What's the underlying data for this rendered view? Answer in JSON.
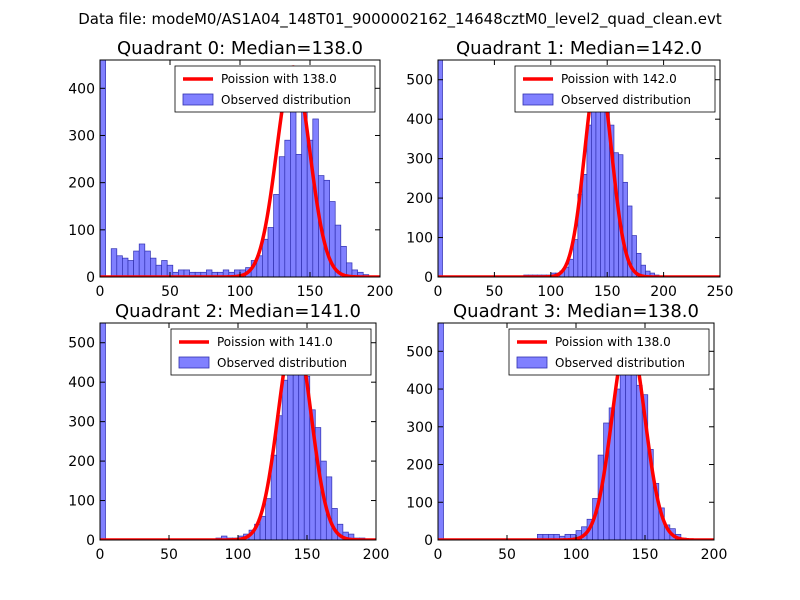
{
  "figure": {
    "suptitle": "Data file: modeM0/AS1A04_148T01_9000002162_14648cztM0_level2_quad_clean.evt",
    "colors": {
      "hist_fill": "#8080ff",
      "hist_edge": "#3030b0",
      "poisson": "#ff0000",
      "background": "#ffffff"
    }
  },
  "chart_data": [
    {
      "type": "bar",
      "title": "Quadrant 0: Median=138.0",
      "xlim": [
        0,
        200
      ],
      "ylim": [
        0,
        460
      ],
      "xticks": [
        0,
        50,
        100,
        150,
        200
      ],
      "yticks": [
        0,
        100,
        200,
        300,
        400
      ],
      "bin_width": 4,
      "bins": [
        [
          0,
          460
        ],
        [
          8,
          60
        ],
        [
          12,
          45
        ],
        [
          16,
          40
        ],
        [
          20,
          35
        ],
        [
          24,
          55
        ],
        [
          28,
          70
        ],
        [
          32,
          55
        ],
        [
          36,
          40
        ],
        [
          40,
          25
        ],
        [
          44,
          35
        ],
        [
          48,
          25
        ],
        [
          52,
          10
        ],
        [
          56,
          15
        ],
        [
          60,
          15
        ],
        [
          64,
          10
        ],
        [
          68,
          10
        ],
        [
          72,
          10
        ],
        [
          76,
          15
        ],
        [
          80,
          10
        ],
        [
          84,
          10
        ],
        [
          88,
          15
        ],
        [
          92,
          10
        ],
        [
          96,
          15
        ],
        [
          100,
          15
        ],
        [
          104,
          20
        ],
        [
          108,
          35
        ],
        [
          112,
          45
        ],
        [
          116,
          80
        ],
        [
          120,
          105
        ],
        [
          124,
          175
        ],
        [
          128,
          255
        ],
        [
          132,
          290
        ],
        [
          136,
          445
        ],
        [
          140,
          260
        ],
        [
          144,
          380
        ],
        [
          148,
          290
        ],
        [
          152,
          335
        ],
        [
          156,
          215
        ],
        [
          160,
          205
        ],
        [
          164,
          160
        ],
        [
          168,
          110
        ],
        [
          172,
          65
        ],
        [
          176,
          30
        ],
        [
          180,
          15
        ],
        [
          184,
          10
        ],
        [
          188,
          5
        ]
      ],
      "poisson": {
        "label": "Poission with 138.0",
        "mean": 138.0,
        "peak": 445
      },
      "legend": {
        "hist_label": "Observed distribution",
        "location": "upper right"
      }
    },
    {
      "type": "bar",
      "title": "Quadrant 1: Median=142.0",
      "xlim": [
        0,
        250
      ],
      "ylim": [
        0,
        550
      ],
      "xticks": [
        0,
        50,
        100,
        150,
        200,
        250
      ],
      "yticks": [
        0,
        100,
        200,
        300,
        400,
        500
      ],
      "bin_width": 4,
      "bins": [
        [
          0,
          550
        ],
        [
          76,
          5
        ],
        [
          80,
          5
        ],
        [
          84,
          5
        ],
        [
          88,
          5
        ],
        [
          92,
          5
        ],
        [
          96,
          5
        ],
        [
          100,
          10
        ],
        [
          104,
          10
        ],
        [
          108,
          15
        ],
        [
          112,
          25
        ],
        [
          116,
          45
        ],
        [
          120,
          95
        ],
        [
          124,
          210
        ],
        [
          128,
          260
        ],
        [
          132,
          385
        ],
        [
          136,
          420
        ],
        [
          140,
          505
        ],
        [
          144,
          450
        ],
        [
          148,
          420
        ],
        [
          152,
          385
        ],
        [
          156,
          315
        ],
        [
          160,
          310
        ],
        [
          164,
          240
        ],
        [
          168,
          180
        ],
        [
          172,
          105
        ],
        [
          176,
          60
        ],
        [
          180,
          30
        ],
        [
          184,
          15
        ],
        [
          188,
          10
        ],
        [
          192,
          5
        ]
      ],
      "poisson": {
        "label": "Poission with 142.0",
        "mean": 142.0,
        "peak": 525
      },
      "legend": {
        "hist_label": "Observed distribution",
        "location": "upper right"
      }
    },
    {
      "type": "bar",
      "title": "Quadrant 2: Median=141.0",
      "xlim": [
        0,
        200
      ],
      "ylim": [
        0,
        550
      ],
      "xticks": [
        0,
        50,
        100,
        150,
        200
      ],
      "yticks": [
        0,
        100,
        200,
        300,
        400,
        500
      ],
      "bin_width": 4,
      "bins": [
        [
          0,
          550
        ],
        [
          84,
          5
        ],
        [
          88,
          10
        ],
        [
          92,
          5
        ],
        [
          96,
          5
        ],
        [
          100,
          10
        ],
        [
          104,
          15
        ],
        [
          108,
          25
        ],
        [
          112,
          40
        ],
        [
          116,
          60
        ],
        [
          120,
          105
        ],
        [
          124,
          215
        ],
        [
          128,
          315
        ],
        [
          132,
          405
        ],
        [
          136,
          460
        ],
        [
          140,
          520
        ],
        [
          144,
          480
        ],
        [
          148,
          415
        ],
        [
          152,
          330
        ],
        [
          156,
          285
        ],
        [
          160,
          200
        ],
        [
          164,
          160
        ],
        [
          168,
          80
        ],
        [
          172,
          40
        ],
        [
          176,
          20
        ],
        [
          180,
          15
        ],
        [
          184,
          5
        ],
        [
          188,
          5
        ]
      ],
      "poisson": {
        "label": "Poission with 141.0",
        "mean": 141.0,
        "peak": 530
      },
      "legend": {
        "hist_label": "Observed distribution",
        "location": "upper right"
      }
    },
    {
      "type": "bar",
      "title": "Quadrant 3: Median=138.0",
      "xlim": [
        0,
        200
      ],
      "ylim": [
        0,
        575
      ],
      "xticks": [
        0,
        50,
        100,
        150,
        200
      ],
      "yticks": [
        0,
        100,
        200,
        300,
        400,
        500
      ],
      "bin_width": 4,
      "bins": [
        [
          0,
          575
        ],
        [
          72,
          15
        ],
        [
          76,
          15
        ],
        [
          80,
          15
        ],
        [
          84,
          15
        ],
        [
          88,
          10
        ],
        [
          92,
          15
        ],
        [
          96,
          15
        ],
        [
          100,
          25
        ],
        [
          104,
          35
        ],
        [
          108,
          55
        ],
        [
          112,
          110
        ],
        [
          116,
          225
        ],
        [
          120,
          310
        ],
        [
          124,
          350
        ],
        [
          128,
          400
        ],
        [
          132,
          500
        ],
        [
          136,
          480
        ],
        [
          140,
          520
        ],
        [
          144,
          410
        ],
        [
          148,
          385
        ],
        [
          152,
          240
        ],
        [
          156,
          150
        ],
        [
          160,
          85
        ],
        [
          164,
          40
        ],
        [
          168,
          30
        ],
        [
          172,
          15
        ],
        [
          176,
          5
        ]
      ],
      "poisson": {
        "label": "Poission with 138.0",
        "mean": 138.0,
        "peak": 545
      },
      "legend": {
        "hist_label": "Observed distribution",
        "location": "upper right"
      }
    }
  ]
}
